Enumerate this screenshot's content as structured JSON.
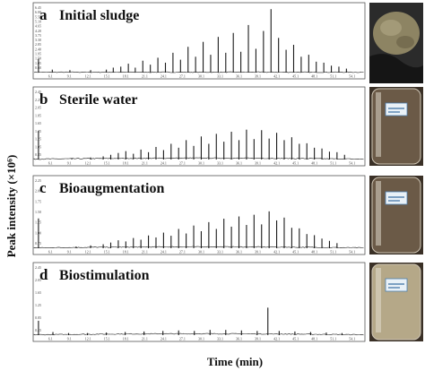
{
  "colors": {
    "trace": "#1a1a1a",
    "axis": "#555555",
    "background": "#ffffff"
  },
  "chart_data": {
    "type": "line",
    "xlabel": "Time (min)",
    "ylabel": "Peak intensity (×10⁶)",
    "grid": false,
    "x_tick_labels": [
      "6.1",
      "9.1",
      "12.1",
      "15.1",
      "18.1",
      "21.1",
      "24.1",
      "27.1",
      "30.1",
      "33.1",
      "36.1",
      "39.1",
      "42.1",
      "45.1",
      "48.1",
      "51.1",
      "54.1"
    ],
    "xlim": [
      3.5,
      56
    ],
    "panels": [
      {
        "letter": "a",
        "title": "Initial sludge",
        "photo": "sludge-sample-photo",
        "ylim": [
          0,
          6.6
        ],
        "y_tick_labels": [
          "6.45",
          "6.00",
          "5.55",
          "5.10",
          "4.65",
          "4.20",
          "3.75",
          "3.30",
          "2.85",
          "2.40",
          "1.95",
          "1.50",
          "1.05",
          "0.60"
        ],
        "x": [
          4.2,
          6.4,
          9.2,
          12.5,
          15.0,
          16.1,
          17.3,
          18.5,
          19.6,
          20.8,
          22.0,
          23.2,
          24.4,
          25.6,
          26.8,
          28.0,
          29.2,
          30.4,
          31.6,
          32.8,
          34.0,
          35.2,
          36.4,
          37.6,
          38.8,
          40.0,
          41.2,
          42.4,
          43.6,
          44.8,
          46.0,
          47.2,
          48.4,
          49.6,
          50.8,
          52.0,
          53.2
        ],
        "y": [
          1.4,
          0.3,
          0.25,
          0.25,
          0.3,
          0.5,
          0.6,
          0.9,
          0.5,
          1.2,
          0.8,
          1.5,
          1.0,
          2.0,
          1.3,
          2.6,
          1.6,
          3.1,
          1.8,
          3.6,
          2.0,
          4.0,
          2.1,
          4.8,
          2.4,
          4.2,
          6.4,
          3.5,
          2.3,
          2.8,
          1.6,
          1.8,
          1.1,
          1.0,
          0.7,
          0.6,
          0.4
        ]
      },
      {
        "letter": "b",
        "title": "Sterile water",
        "photo": "sterile-water-sample-photo",
        "ylim": [
          0,
          2.6
        ],
        "y_tick_labels": [
          "2.45",
          "2.25",
          "2.05",
          "1.85",
          "1.65",
          "1.45",
          "1.25",
          "1.05",
          "0.85"
        ],
        "x": [
          4.2,
          9.5,
          12.5,
          14.5,
          15.7,
          16.9,
          18.1,
          19.3,
          20.5,
          21.7,
          22.9,
          24.1,
          25.3,
          26.5,
          27.7,
          28.9,
          30.1,
          31.3,
          32.5,
          33.7,
          34.9,
          36.1,
          37.3,
          38.5,
          39.7,
          40.9,
          42.1,
          43.3,
          44.5,
          45.7,
          46.9,
          48.1,
          49.3,
          50.5,
          51.7,
          52.9
        ],
        "y": [
          1.1,
          0.05,
          0.08,
          0.12,
          0.18,
          0.25,
          0.32,
          0.22,
          0.38,
          0.28,
          0.48,
          0.36,
          0.6,
          0.45,
          0.74,
          0.52,
          0.88,
          0.6,
          0.98,
          0.68,
          1.06,
          0.74,
          1.14,
          0.78,
          1.12,
          0.8,
          1.02,
          0.74,
          0.85,
          0.6,
          0.62,
          0.45,
          0.42,
          0.3,
          0.28,
          0.18
        ]
      },
      {
        "letter": "c",
        "title": "Bioaugmentation",
        "photo": "bioaugmentation-sample-photo",
        "ylim": [
          0,
          2.4
        ],
        "y_tick_labels": [
          "2.25",
          "2.00",
          "1.75",
          "1.50",
          "1.25",
          "1.00",
          "0.75"
        ],
        "x": [
          4.2,
          10.2,
          12.5,
          14.5,
          15.7,
          16.9,
          18.1,
          19.3,
          20.5,
          21.7,
          22.9,
          24.1,
          25.3,
          26.5,
          27.7,
          28.9,
          30.1,
          31.3,
          32.5,
          33.7,
          34.9,
          36.1,
          37.3,
          38.5,
          39.7,
          40.9,
          42.1,
          43.3,
          44.5,
          45.7,
          46.9,
          48.1,
          49.3,
          50.5,
          51.7
        ],
        "y": [
          1.05,
          0.06,
          0.1,
          0.14,
          0.2,
          0.28,
          0.24,
          0.36,
          0.3,
          0.45,
          0.38,
          0.55,
          0.44,
          0.68,
          0.52,
          0.8,
          0.6,
          0.92,
          0.68,
          1.04,
          0.76,
          1.12,
          0.82,
          1.18,
          0.84,
          1.3,
          0.98,
          1.08,
          0.72,
          0.7,
          0.5,
          0.46,
          0.34,
          0.26,
          0.18
        ]
      },
      {
        "letter": "d",
        "title": "Biostimulation",
        "photo": "biostimulation-sample-photo",
        "ylim": [
          0,
          2.6
        ],
        "y_tick_labels": [
          "2.45",
          "2.05",
          "1.65",
          "1.25",
          "0.85",
          "0.45"
        ],
        "x": [
          4.2,
          6.5,
          9.0,
          12.0,
          15.0,
          18.0,
          21.0,
          24.0,
          26.5,
          29.0,
          31.5,
          34.0,
          36.5,
          39.0,
          40.7,
          42.5,
          45.0,
          47.5,
          50.0,
          52.5
        ],
        "y": [
          0.55,
          0.12,
          0.08,
          0.08,
          0.1,
          0.12,
          0.14,
          0.16,
          0.18,
          0.16,
          0.2,
          0.2,
          0.18,
          0.16,
          1.05,
          0.16,
          0.14,
          0.12,
          0.1,
          0.08
        ]
      }
    ]
  }
}
